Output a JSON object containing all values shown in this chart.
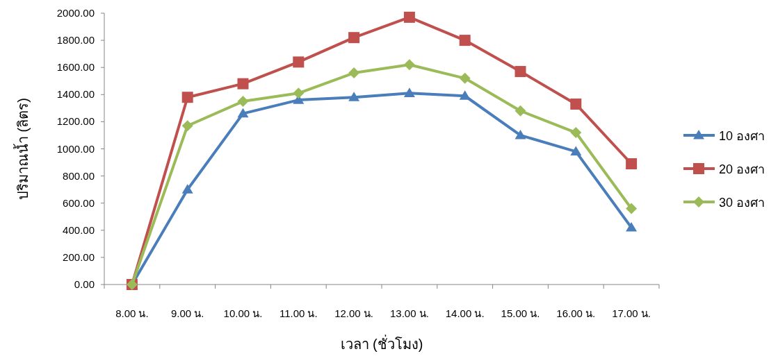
{
  "chart_data": {
    "type": "line",
    "xlabel": "เวลา (ชั่วโมง)",
    "ylabel": "ปริมาณน้ำ (ลิตร)",
    "categories": [
      "8.00 น.",
      "9.00 น.",
      "10.00 น.",
      "11.00 น.",
      "12.00 น.",
      "13.00 น.",
      "14.00 น.",
      "15.00 น.",
      "16.00 น.",
      "17.00 น."
    ],
    "series": [
      {
        "name": "10 องศา",
        "color": "#4a7ebb",
        "marker": "triangle",
        "values": [
          0,
          700,
          1260,
          1360,
          1380,
          1410,
          1390,
          1100,
          980,
          420
        ]
      },
      {
        "name": "20 องศา",
        "color": "#c0504d",
        "marker": "square",
        "values": [
          0,
          1380,
          1480,
          1640,
          1820,
          1970,
          1800,
          1570,
          1330,
          890
        ]
      },
      {
        "name": "30 องศา",
        "color": "#9bbb59",
        "marker": "diamond",
        "values": [
          0,
          1170,
          1350,
          1410,
          1560,
          1620,
          1520,
          1280,
          1120,
          560
        ]
      }
    ],
    "ylim": [
      0,
      2000
    ],
    "yticks": [
      {
        "value": 0,
        "label": "0.00"
      },
      {
        "value": 200,
        "label": "200.00"
      },
      {
        "value": 400,
        "label": "400.00"
      },
      {
        "value": 600,
        "label": "600.00"
      },
      {
        "value": 800,
        "label": "800.00"
      },
      {
        "value": 1000,
        "label": "1000.00"
      },
      {
        "value": 1200,
        "label": "1200.00"
      },
      {
        "value": 1400,
        "label": "1400.00"
      },
      {
        "value": 1600,
        "label": "1600.00"
      },
      {
        "value": 1800,
        "label": "1800.00"
      },
      {
        "value": 2000,
        "label": "2000.00"
      }
    ],
    "grid": false,
    "legend": "right",
    "line_style": "solid"
  }
}
